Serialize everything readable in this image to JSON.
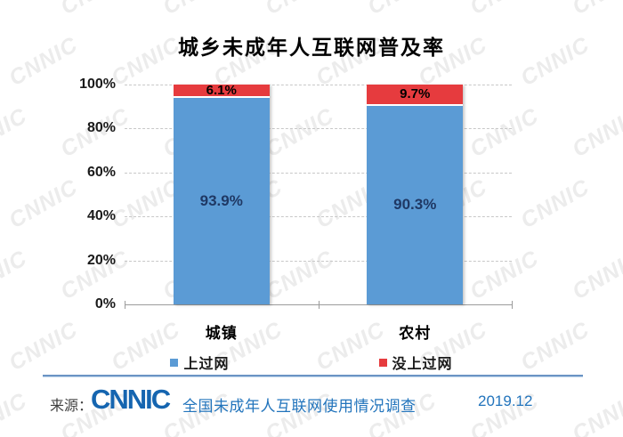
{
  "title": "城乡未成年人互联网普及率",
  "watermark": {
    "text": "CNNIC"
  },
  "chart_data": {
    "type": "bar",
    "stacked": true,
    "title": "城乡未成年人互联网普及率",
    "categories": [
      "城镇",
      "农村"
    ],
    "series": [
      {
        "name": "上过网",
        "color": "#5B9BD5",
        "label_color": "#1F3864",
        "values": [
          93.9,
          90.3
        ]
      },
      {
        "name": "没上过网",
        "color": "#E63B3E",
        "label_color": "#000000",
        "values": [
          6.1,
          9.7
        ]
      }
    ],
    "value_suffix": "%",
    "ylim": [
      0,
      100
    ],
    "yticks": [
      "0%",
      "20%",
      "40%",
      "60%",
      "80%",
      "100%"
    ],
    "grid": "horizontal-dashed",
    "legend_position": "bottom"
  },
  "footer": {
    "source_label": "来源：",
    "logo": "CNNIC",
    "survey": "全国未成年人互联网使用情况调查",
    "date": "2019.12"
  }
}
